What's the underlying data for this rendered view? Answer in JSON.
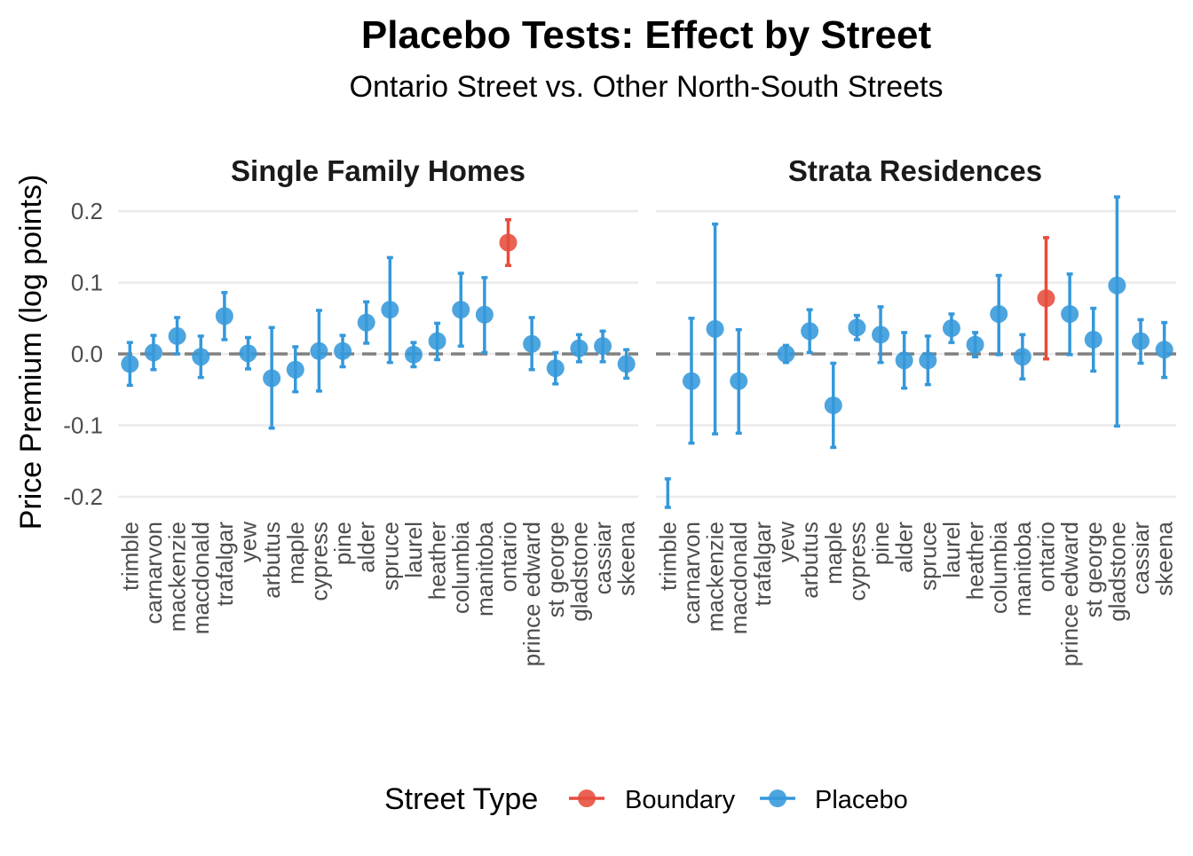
{
  "chart_data": {
    "type": "scatter",
    "title": "Placebo Tests: Effect by Street",
    "subtitle": "Ontario Street vs. Other North-South Streets",
    "ylabel": "Price Premium (log points)",
    "xlabel": "",
    "ylim": [
      -0.215,
      0.22
    ],
    "yticks": [
      -0.2,
      -0.1,
      0.0,
      0.1,
      0.2
    ],
    "ytick_labels": [
      "-0.2",
      "-0.1",
      "0.0",
      "0.1",
      "0.2"
    ],
    "reference_line": 0.0,
    "grid": true,
    "legend": {
      "title": "Street Type",
      "position": "bottom",
      "entries": [
        {
          "name": "Boundary",
          "color": "#E74C3C"
        },
        {
          "name": "Placebo",
          "color": "#3498DB"
        }
      ]
    },
    "categories": [
      "trimble",
      "carnarvon",
      "mackenzie",
      "macdonald",
      "trafalgar",
      "yew",
      "arbutus",
      "maple",
      "cypress",
      "pine",
      "alder",
      "spruce",
      "laurel",
      "heather",
      "columbia",
      "manitoba",
      "ontario",
      "prince edward",
      "st george",
      "gladstone",
      "cassiar",
      "skeena"
    ],
    "panels": [
      {
        "title": "Single Family Homes",
        "estimates": [
          -0.014,
          0.002,
          0.025,
          -0.004,
          0.053,
          0.001,
          -0.034,
          -0.022,
          0.004,
          0.004,
          0.044,
          0.062,
          -0.001,
          0.018,
          0.062,
          0.055,
          0.156,
          0.014,
          -0.02,
          0.008,
          0.011,
          -0.014
        ],
        "lower": [
          -0.044,
          -0.022,
          0.0,
          -0.033,
          0.02,
          -0.021,
          -0.104,
          -0.053,
          -0.052,
          -0.018,
          0.015,
          -0.012,
          -0.018,
          -0.008,
          0.011,
          0.002,
          0.124,
          -0.022,
          -0.042,
          -0.011,
          -0.011,
          -0.034
        ],
        "upper": [
          0.016,
          0.026,
          0.051,
          0.025,
          0.086,
          0.023,
          0.037,
          0.01,
          0.061,
          0.026,
          0.073,
          0.135,
          0.016,
          0.043,
          0.113,
          0.107,
          0.188,
          0.051,
          0.002,
          0.027,
          0.032,
          0.006
        ],
        "street_type": [
          "Placebo",
          "Placebo",
          "Placebo",
          "Placebo",
          "Placebo",
          "Placebo",
          "Placebo",
          "Placebo",
          "Placebo",
          "Placebo",
          "Placebo",
          "Placebo",
          "Placebo",
          "Placebo",
          "Placebo",
          "Placebo",
          "Boundary",
          "Placebo",
          "Placebo",
          "Placebo",
          "Placebo",
          "Placebo"
        ]
      },
      {
        "title": "Strata Residences",
        "estimates": [
          null,
          -0.038,
          0.035,
          -0.038,
          null,
          0.0,
          0.032,
          -0.072,
          0.037,
          0.027,
          -0.009,
          -0.009,
          0.036,
          0.013,
          0.056,
          -0.004,
          0.078,
          0.056,
          0.02,
          0.096,
          0.018,
          0.006
        ],
        "lower": [
          -0.215,
          -0.125,
          -0.112,
          -0.111,
          null,
          -0.012,
          0.002,
          -0.131,
          0.02,
          -0.012,
          -0.048,
          -0.043,
          0.016,
          -0.004,
          -0.001,
          -0.035,
          -0.007,
          -0.001,
          -0.024,
          -0.101,
          -0.013,
          -0.033
        ],
        "upper": [
          -0.175,
          0.05,
          0.182,
          0.034,
          null,
          0.012,
          0.062,
          -0.013,
          0.054,
          0.066,
          0.03,
          0.025,
          0.056,
          0.03,
          0.11,
          0.027,
          0.163,
          0.112,
          0.064,
          0.22,
          0.048,
          0.044
        ],
        "street_type": [
          "Placebo",
          "Placebo",
          "Placebo",
          "Placebo",
          "Placebo",
          "Placebo",
          "Placebo",
          "Placebo",
          "Placebo",
          "Placebo",
          "Placebo",
          "Placebo",
          "Placebo",
          "Placebo",
          "Placebo",
          "Placebo",
          "Boundary",
          "Placebo",
          "Placebo",
          "Placebo",
          "Placebo",
          "Placebo"
        ]
      }
    ]
  }
}
